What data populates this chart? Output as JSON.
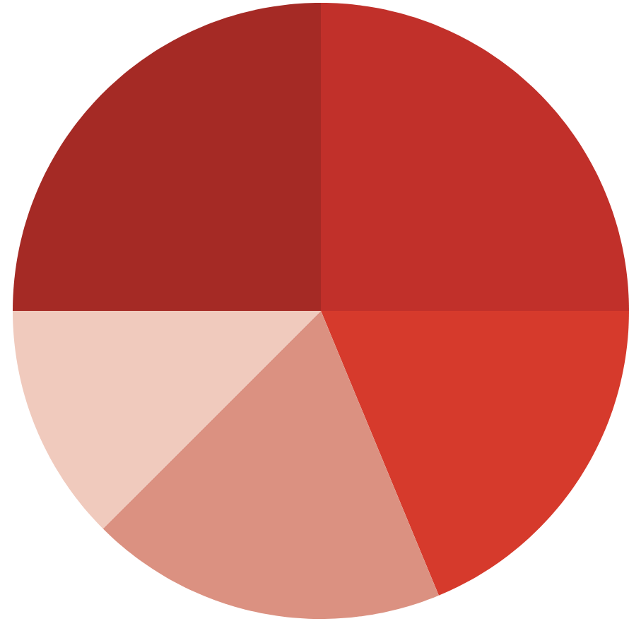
{
  "chart_data": {
    "type": "pie",
    "categories": [
      null,
      null,
      null,
      null,
      null
    ],
    "values": [
      25,
      18.75,
      18.75,
      12.5,
      25
    ],
    "colors": [
      "#c1302a",
      "#d63a2c",
      "#db9181",
      "#f0cabd",
      "#a52a25"
    ]
  }
}
